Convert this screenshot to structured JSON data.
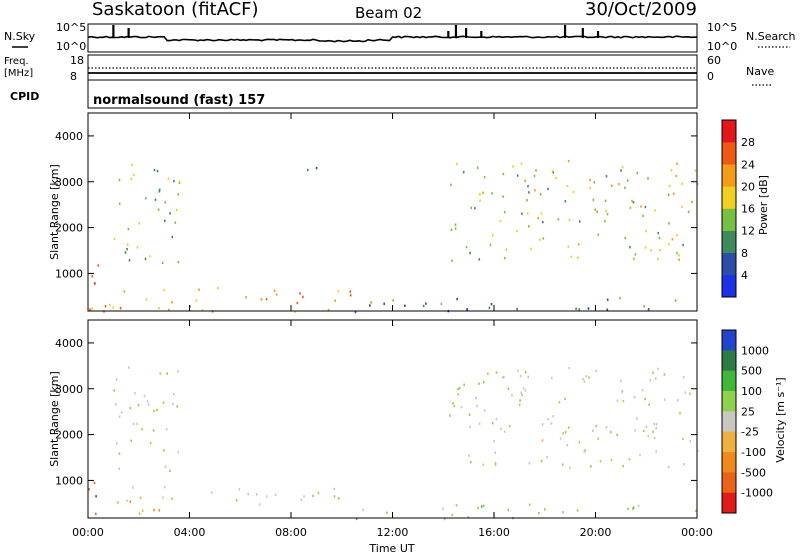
{
  "header": {
    "station": "Saskatoon (fitACF)",
    "beam": "Beam 02",
    "date": "30/Oct/2009"
  },
  "aux_panels": {
    "nsky_label": "N.Sky",
    "nsearch_label": "N.Search",
    "freq_label_1": "Freq.",
    "freq_label_2": "[MHz]",
    "nave_label": "Nave",
    "cpid_label": "CPID",
    "cpid_value": "normalsound (fast) 157",
    "noise_ticks": [
      "10^5",
      "10^0"
    ],
    "freq_ticks": [
      "18",
      "8"
    ],
    "nave_ticks": [
      "60",
      "0"
    ]
  },
  "axes": {
    "ylabel": "Slant Range [km]",
    "xlabel": "Time UT",
    "yticks": [
      "1000",
      "2000",
      "3000",
      "4000"
    ],
    "xticks": [
      "00:00",
      "04:00",
      "08:00",
      "12:00",
      "16:00",
      "20:00",
      "00:00"
    ]
  },
  "power_scale": {
    "label": "Power [dB]",
    "ticks": [
      "4",
      "8",
      "12",
      "16",
      "20",
      "24",
      "28"
    ],
    "colors": [
      "#1a33e6",
      "#2a4ea8",
      "#3f8a5c",
      "#77c142",
      "#f0d020",
      "#f59b1c",
      "#ee5a12",
      "#e3161b"
    ]
  },
  "velocity_scale": {
    "label": "Velocity [m s⁻¹]",
    "ticks": [
      "1000",
      "500",
      "100",
      "25",
      "-25",
      "-100",
      "-500",
      "-1000"
    ],
    "colors": [
      "#2244cc",
      "#2e7a44",
      "#3fb83a",
      "#8fd14d",
      "#c8c8c0",
      "#f0b040",
      "#ee8a1e",
      "#ea6418",
      "#e21a1a"
    ]
  },
  "chart_data": [
    {
      "type": "heatmap",
      "quantity": "Power [dB]",
      "x_range": [
        "00:00",
        "24:00"
      ],
      "y_range_km": [
        180,
        4500
      ],
      "colorbar_ticks": [
        4,
        8,
        12,
        16,
        20,
        24,
        28
      ],
      "echo_regions": [
        {
          "time_start_h": 0.0,
          "time_end_h": 0.4,
          "range_km": [
            400,
            1700
          ],
          "power_db": 28
        },
        {
          "time_start_h": 0.9,
          "time_end_h": 3.6,
          "range_km": [
            1200,
            3500
          ],
          "power_db": 16
        },
        {
          "time_start_h": 0.0,
          "time_end_h": 10.5,
          "range_km": [
            180,
            750
          ],
          "power_db": 24
        },
        {
          "time_start_h": 8.6,
          "time_end_h": 9.4,
          "range_km": [
            3000,
            3500
          ],
          "power_db": 8
        },
        {
          "time_start_h": 14.2,
          "time_end_h": 24.0,
          "range_km": [
            1300,
            3500
          ],
          "power_db": 18
        },
        {
          "time_start_h": 10.5,
          "time_end_h": 24.0,
          "range_km": [
            180,
            500
          ],
          "power_db": 10
        }
      ]
    },
    {
      "type": "heatmap",
      "quantity": "Velocity [m s-1]",
      "x_range": [
        "00:00",
        "24:00"
      ],
      "y_range_km": [
        180,
        4500
      ],
      "colorbar_ticks": [
        1000,
        500,
        100,
        25,
        -25,
        -100,
        -500,
        -1000
      ],
      "echo_regions": [
        {
          "time_start_h": 0.0,
          "time_end_h": 0.5,
          "range_km": [
            300,
            1200
          ],
          "velocity_ms": -500
        },
        {
          "time_start_h": 0.9,
          "time_end_h": 3.6,
          "range_km": [
            1200,
            3500
          ],
          "velocity_ms": 0
        },
        {
          "time_start_h": 1.0,
          "time_end_h": 10.5,
          "range_km": [
            500,
            900
          ],
          "velocity_ms": 0
        },
        {
          "time_start_h": 0.0,
          "time_end_h": 3.0,
          "range_km": [
            200,
            600
          ],
          "velocity_ms": -100
        },
        {
          "time_start_h": 14.2,
          "time_end_h": 24.0,
          "range_km": [
            1300,
            3500
          ],
          "velocity_ms": 0
        },
        {
          "time_start_h": 10.5,
          "time_end_h": 24.0,
          "range_km": [
            180,
            500
          ],
          "velocity_ms": 100
        }
      ]
    }
  ]
}
